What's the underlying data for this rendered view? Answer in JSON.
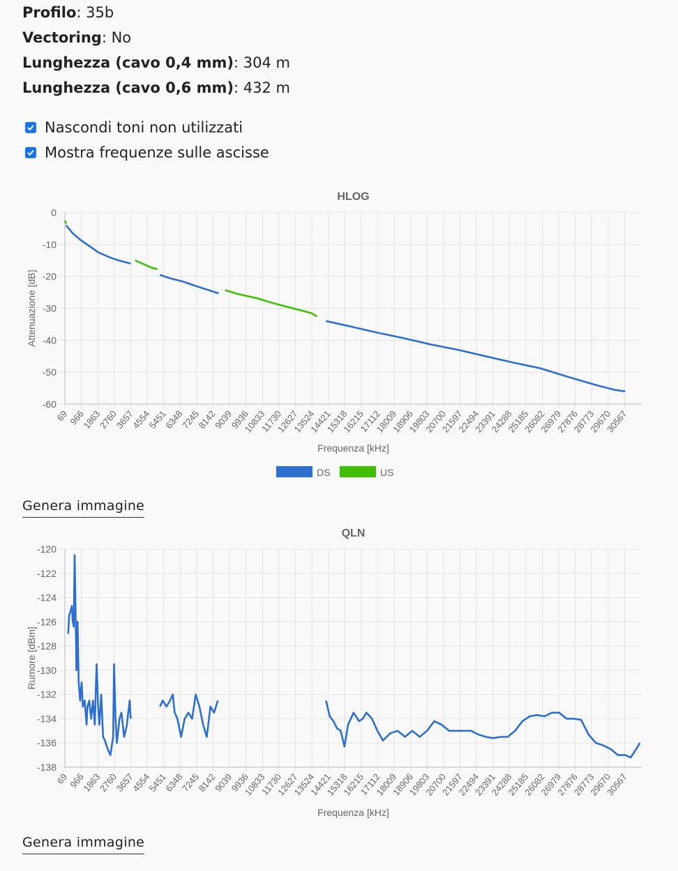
{
  "info": {
    "profile_label": "Profilo",
    "profile_value": "35b",
    "vectoring_label": "Vectoring",
    "vectoring_value": "No",
    "len04_label": "Lunghezza (cavo 0,4 mm)",
    "len04_value": "304 m",
    "len06_label": "Lunghezza (cavo 0,6 mm)",
    "len06_value": "432 m"
  },
  "options": [
    {
      "label": "Nascondi toni non utilizzati",
      "checked": true
    },
    {
      "label": "Mostra frequenze sulle ascisse",
      "checked": true
    }
  ],
  "generate_label": "Genera immagine",
  "chart_data": [
    {
      "type": "line",
      "title": "HLOG",
      "xlabel": "Frequenza [kHz]",
      "ylabel": "Attenuazione [dB]",
      "ylim": [
        -60,
        0
      ],
      "yticks": [
        0,
        -10,
        -20,
        -30,
        -40,
        -50,
        -60
      ],
      "xlim": [
        69,
        31500
      ],
      "xticks": [
        69,
        966,
        1863,
        2760,
        3657,
        4554,
        5451,
        6348,
        7245,
        8142,
        9039,
        9936,
        10833,
        11730,
        12627,
        13524,
        14421,
        15318,
        16215,
        17112,
        18009,
        18906,
        19803,
        20700,
        21597,
        22494,
        23391,
        24288,
        25185,
        26082,
        26979,
        27876,
        28773,
        29670,
        30567
      ],
      "grid": true,
      "legend": "bottom",
      "series": [
        {
          "name": "DS",
          "color": "#2d6fce",
          "segments": [
            [
              [
                138,
                -4
              ],
              [
                500,
                -6.5
              ],
              [
                900,
                -8.5
              ],
              [
                1400,
                -10.5
              ],
              [
                1900,
                -12.5
              ],
              [
                2500,
                -14
              ],
              [
                3000,
                -15
              ],
              [
                3657,
                -16
              ]
            ],
            [
              [
                5240,
                -19.5
              ],
              [
                5800,
                -20.6
              ],
              [
                6500,
                -21.6
              ],
              [
                7200,
                -23
              ],
              [
                7900,
                -24.3
              ],
              [
                8450,
                -25.3
              ]
            ],
            [
              [
                14300,
                -34
              ],
              [
                15500,
                -35.5
              ],
              [
                17000,
                -37.5
              ],
              [
                18500,
                -39.3
              ],
              [
                20000,
                -41.3
              ],
              [
                21500,
                -43
              ],
              [
                23000,
                -45
              ],
              [
                24500,
                -47
              ],
              [
                26000,
                -48.8
              ],
              [
                27500,
                -51.5
              ],
              [
                29000,
                -54
              ],
              [
                30000,
                -55.5
              ],
              [
                30600,
                -56
              ]
            ]
          ]
        },
        {
          "name": "US",
          "color": "#3fbf00",
          "segments": [
            [
              [
                69,
                -2.5
              ],
              [
                138,
                -3.5
              ]
            ],
            [
              [
                3900,
                -15
              ],
              [
                4300,
                -16
              ],
              [
                4800,
                -17.3
              ],
              [
                5100,
                -17.7
              ]
            ],
            [
              [
                8800,
                -24.3
              ],
              [
                9500,
                -25.5
              ],
              [
                10500,
                -26.8
              ],
              [
                11500,
                -28.5
              ],
              [
                12500,
                -30
              ],
              [
                13500,
                -31.5
              ],
              [
                13800,
                -32.5
              ]
            ]
          ]
        }
      ]
    },
    {
      "type": "line",
      "title": "QLN",
      "xlabel": "Frequenza [kHz]",
      "ylabel": "Rumore [dBm]",
      "ylim": [
        -138,
        -120
      ],
      "yticks": [
        -120,
        -122,
        -124,
        -126,
        -128,
        -130,
        -132,
        -134,
        -136,
        -138
      ],
      "xlim": [
        69,
        31500
      ],
      "xticks": [
        69,
        966,
        1863,
        2760,
        3657,
        4554,
        5451,
        6348,
        7245,
        8142,
        9039,
        9936,
        10833,
        11730,
        12627,
        13524,
        14421,
        15318,
        16215,
        17112,
        18009,
        18906,
        19803,
        20700,
        21597,
        22494,
        23391,
        24288,
        25185,
        26082,
        26979,
        27876,
        28773,
        29670,
        30567
      ],
      "grid": true,
      "series": [
        {
          "name": "",
          "color": "#2d6fce",
          "segments": [
            [
              [
                250,
                -127
              ],
              [
                300,
                -125.5
              ],
              [
                400,
                -125
              ],
              [
                450,
                -124.7
              ],
              [
                500,
                -126
              ],
              [
                550,
                -126.4
              ],
              [
                600,
                -120.5
              ],
              [
                640,
                -124
              ],
              [
                700,
                -130
              ],
              [
                760,
                -126
              ],
              [
                820,
                -131
              ],
              [
                900,
                -132.5
              ],
              [
                980,
                -131
              ],
              [
                1050,
                -133
              ],
              [
                1150,
                -132.5
              ],
              [
                1250,
                -134.5
              ],
              [
                1300,
                -133
              ],
              [
                1400,
                -132.5
              ],
              [
                1500,
                -134
              ],
              [
                1600,
                -132.5
              ],
              [
                1700,
                -134.5
              ],
              [
                1800,
                -129.5
              ],
              [
                1880,
                -133
              ],
              [
                1950,
                -134.5
              ],
              [
                2050,
                -132
              ],
              [
                2150,
                -135.5
              ],
              [
                2250,
                -135.8
              ],
              [
                2400,
                -136.5
              ],
              [
                2550,
                -137
              ],
              [
                2650,
                -136
              ],
              [
                2700,
                -135.5
              ],
              [
                2750,
                -129.5
              ],
              [
                2830,
                -134
              ],
              [
                2900,
                -136
              ],
              [
                3050,
                -134
              ],
              [
                3150,
                -133.5
              ],
              [
                3300,
                -135.5
              ],
              [
                3450,
                -134.5
              ],
              [
                3520,
                -133.5
              ],
              [
                3600,
                -132.5
              ],
              [
                3657,
                -134
              ]
            ],
            [
              [
                5250,
                -133
              ],
              [
                5400,
                -132.5
              ],
              [
                5600,
                -133
              ],
              [
                5800,
                -132.5
              ],
              [
                5950,
                -132
              ],
              [
                6050,
                -133.5
              ],
              [
                6200,
                -134
              ],
              [
                6400,
                -135.5
              ],
              [
                6600,
                -134
              ],
              [
                6800,
                -133.5
              ],
              [
                7000,
                -134
              ],
              [
                7200,
                -132
              ],
              [
                7400,
                -133
              ],
              [
                7600,
                -134.5
              ],
              [
                7800,
                -135.5
              ],
              [
                8000,
                -133
              ],
              [
                8200,
                -133.5
              ],
              [
                8400,
                -132.5
              ]
            ],
            [
              [
                14300,
                -132.5
              ],
              [
                14500,
                -133.8
              ],
              [
                14700,
                -134.2
              ],
              [
                14900,
                -134.8
              ],
              [
                15100,
                -135
              ],
              [
                15300,
                -136.3
              ],
              [
                15500,
                -134.5
              ],
              [
                15800,
                -133.5
              ],
              [
                16100,
                -134.2
              ],
              [
                16300,
                -134
              ],
              [
                16500,
                -133.5
              ],
              [
                16800,
                -134
              ],
              [
                17100,
                -135
              ],
              [
                17400,
                -135.8
              ],
              [
                17800,
                -135.2
              ],
              [
                18200,
                -135
              ],
              [
                18600,
                -135.5
              ],
              [
                19000,
                -135
              ],
              [
                19400,
                -135.5
              ],
              [
                19800,
                -135
              ],
              [
                20200,
                -134.2
              ],
              [
                20600,
                -134.5
              ],
              [
                21000,
                -135
              ],
              [
                21400,
                -135
              ],
              [
                21800,
                -135
              ],
              [
                22200,
                -135
              ],
              [
                22600,
                -135.3
              ],
              [
                23000,
                -135.5
              ],
              [
                23400,
                -135.6
              ],
              [
                23800,
                -135.5
              ],
              [
                24200,
                -135.5
              ],
              [
                24600,
                -135
              ],
              [
                25000,
                -134.2
              ],
              [
                25400,
                -133.8
              ],
              [
                25800,
                -133.7
              ],
              [
                26200,
                -133.8
              ],
              [
                26600,
                -133.5
              ],
              [
                27000,
                -133.5
              ],
              [
                27400,
                -134
              ],
              [
                27800,
                -134
              ],
              [
                28200,
                -134.1
              ],
              [
                28600,
                -135.3
              ],
              [
                29000,
                -136
              ],
              [
                29400,
                -136.2
              ],
              [
                29800,
                -136.5
              ],
              [
                30200,
                -137
              ],
              [
                30600,
                -137
              ],
              [
                30900,
                -137.2
              ],
              [
                31200,
                -136.5
              ],
              [
                31400,
                -136
              ]
            ]
          ]
        }
      ]
    }
  ]
}
